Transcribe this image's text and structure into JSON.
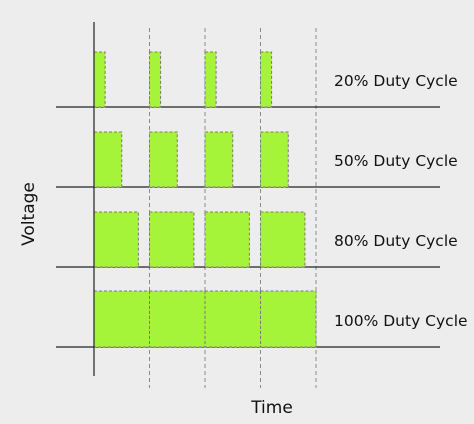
{
  "colors": {
    "background": "#ededed",
    "pulse_fill": "#a6f43a",
    "pulse_stroke": "#7a7a7a",
    "axis": "#222222",
    "guide": "#8a8a8a"
  },
  "axes": {
    "x_label": "Time",
    "y_label": "Voltage"
  },
  "period_count": 4,
  "rows": [
    {
      "label": "20% Duty Cycle",
      "duty": 0.2
    },
    {
      "label": "50% Duty Cycle",
      "duty": 0.5
    },
    {
      "label": "80% Duty Cycle",
      "duty": 0.8
    },
    {
      "label": "100% Duty Cycle",
      "duty": 1.0
    }
  ]
}
